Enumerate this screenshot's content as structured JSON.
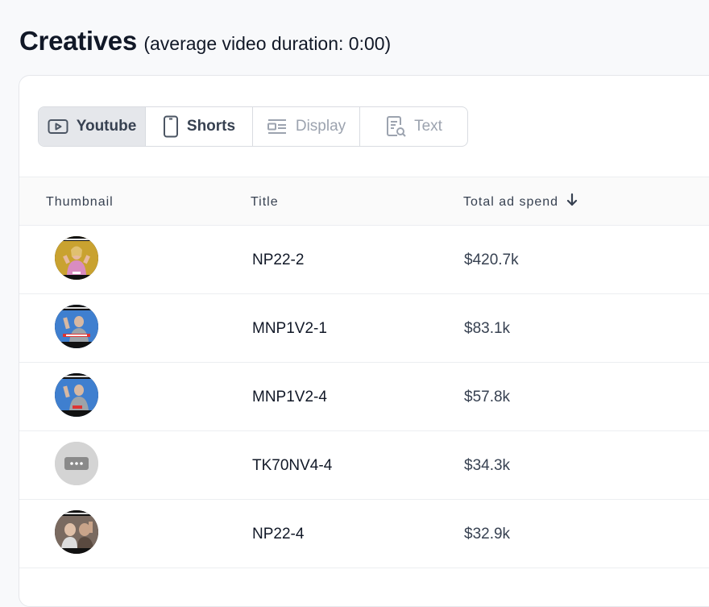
{
  "header": {
    "title": "Creatives",
    "subtitle": "(average video duration: 0:00)"
  },
  "tabs": [
    {
      "label": "Youtube",
      "icon": "play-icon",
      "state": "active"
    },
    {
      "label": "Shorts",
      "icon": "phone-icon",
      "state": "enabled"
    },
    {
      "label": "Display",
      "icon": "display-icon",
      "state": "disabled"
    },
    {
      "label": "Text",
      "icon": "text-doc-icon",
      "state": "disabled"
    }
  ],
  "table": {
    "columns": {
      "thumbnail": "Thumbnail",
      "title": "Title",
      "total_ad_spend": "Total ad spend"
    },
    "sort": {
      "column": "total_ad_spend",
      "direction": "desc",
      "icon": "arrow-down-icon"
    },
    "rows": [
      {
        "title": "NP22-2",
        "spend": "$420.7k",
        "thumb": "yellow-woman"
      },
      {
        "title": "MNP1V2-1",
        "spend": "$83.1k",
        "thumb": "blue-man"
      },
      {
        "title": "MNP1V2-4",
        "spend": "$57.8k",
        "thumb": "blue-man"
      },
      {
        "title": "TK70NV4-4",
        "spend": "$34.3k",
        "thumb": "placeholder"
      },
      {
        "title": "NP22-4",
        "spend": "$32.9k",
        "thumb": "people"
      }
    ]
  },
  "colors": {
    "active_tab_bg": "#e5e7eb",
    "border": "#d9dce1",
    "disabled_text": "#9ca3af"
  }
}
